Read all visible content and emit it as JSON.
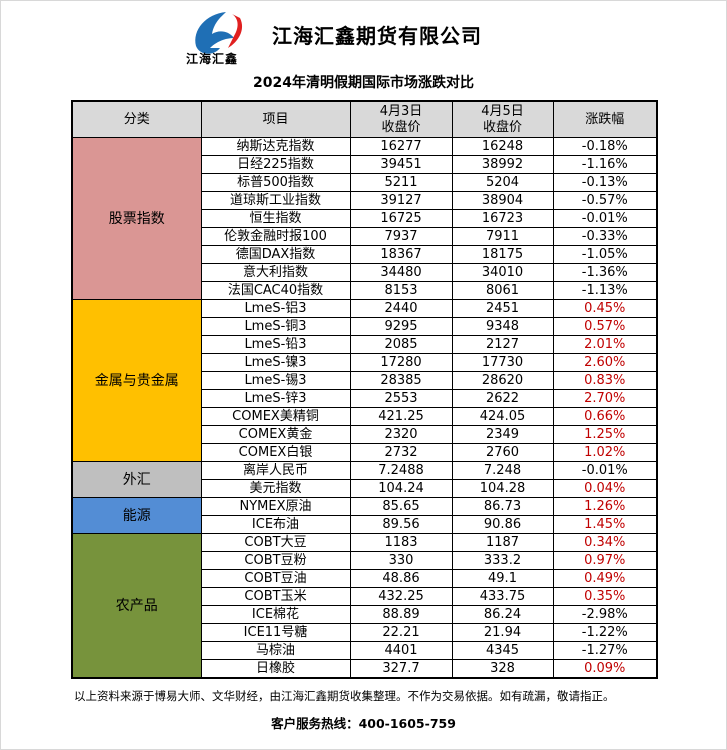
{
  "header": {
    "company": "江海汇鑫期货有限公司",
    "logo_text": "江海汇鑫"
  },
  "title": "2024年清明假期国际市场涨跌对比",
  "columns": [
    "分类",
    "项目",
    "4月3日\n收盘价",
    "4月5日\n收盘价",
    "涨跌幅"
  ],
  "colors": {
    "股票指数": "#da9694",
    "金属与贵金属": "#ffc000",
    "外汇": "#bfbfbf",
    "能源": "#538dd5",
    "农产品": "#77933c",
    "positive": "#c00000"
  },
  "groups": [
    {
      "category": "股票指数",
      "rows": [
        [
          "纳斯达克指数",
          "16277",
          "16248",
          "-0.18%"
        ],
        [
          "日经225指数",
          "39451",
          "38992",
          "-1.16%"
        ],
        [
          "标普500指数",
          "5211",
          "5204",
          "-0.13%"
        ],
        [
          "道琼斯工业指数",
          "39127",
          "38904",
          "-0.57%"
        ],
        [
          "恒生指数",
          "16725",
          "16723",
          "-0.01%"
        ],
        [
          "伦敦金融时报100",
          "7937",
          "7911",
          "-0.33%"
        ],
        [
          "德国DAX指数",
          "18367",
          "18175",
          "-1.05%"
        ],
        [
          "意大利指数",
          "34480",
          "34010",
          "-1.36%"
        ],
        [
          "法国CAC40指数",
          "8153",
          "8061",
          "-1.13%"
        ]
      ]
    },
    {
      "category": "金属与贵金属",
      "rows": [
        [
          "LmeS-铝3",
          "2440",
          "2451",
          "0.45%"
        ],
        [
          "LmeS-铜3",
          "9295",
          "9348",
          "0.57%"
        ],
        [
          "LmeS-铅3",
          "2085",
          "2127",
          "2.01%"
        ],
        [
          "LmeS-镍3",
          "17280",
          "17730",
          "2.60%"
        ],
        [
          "LmeS-锡3",
          "28385",
          "28620",
          "0.83%"
        ],
        [
          "LmeS-锌3",
          "2553",
          "2622",
          "2.70%"
        ],
        [
          "COMEX美精铜",
          "421.25",
          "424.05",
          "0.66%"
        ],
        [
          "COMEX黄金",
          "2320",
          "2349",
          "1.25%"
        ],
        [
          "COMEX白银",
          "2732",
          "2760",
          "1.02%"
        ]
      ]
    },
    {
      "category": "外汇",
      "rows": [
        [
          "离岸人民币",
          "7.2488",
          "7.248",
          "-0.01%"
        ],
        [
          "美元指数",
          "104.24",
          "104.28",
          "0.04%"
        ]
      ]
    },
    {
      "category": "能源",
      "rows": [
        [
          "NYMEX原油",
          "85.65",
          "86.73",
          "1.26%"
        ],
        [
          "ICE布油",
          "89.56",
          "90.86",
          "1.45%"
        ]
      ]
    },
    {
      "category": "农产品",
      "rows": [
        [
          "COBT大豆",
          "1183",
          "1187",
          "0.34%"
        ],
        [
          "COBT豆粉",
          "330",
          "333.2",
          "0.97%"
        ],
        [
          "COBT豆油",
          "48.86",
          "49.1",
          "0.49%"
        ],
        [
          "COBT玉米",
          "432.25",
          "433.75",
          "0.35%"
        ],
        [
          "ICE棉花",
          "88.89",
          "86.24",
          "-2.98%"
        ],
        [
          "ICE11号糖",
          "22.21",
          "21.94",
          "-1.22%"
        ],
        [
          "马棕油",
          "4401",
          "4345",
          "-1.27%"
        ],
        [
          "日橡胶",
          "327.7",
          "328",
          "0.09%"
        ]
      ]
    }
  ],
  "footer": {
    "note": "以上资料来源于博易大师、文华财经，由江海汇鑫期货收集整理。不作为交易依据。如有疏漏，敬请指正。",
    "hotline": "客户服务热线：400-1605-759"
  }
}
